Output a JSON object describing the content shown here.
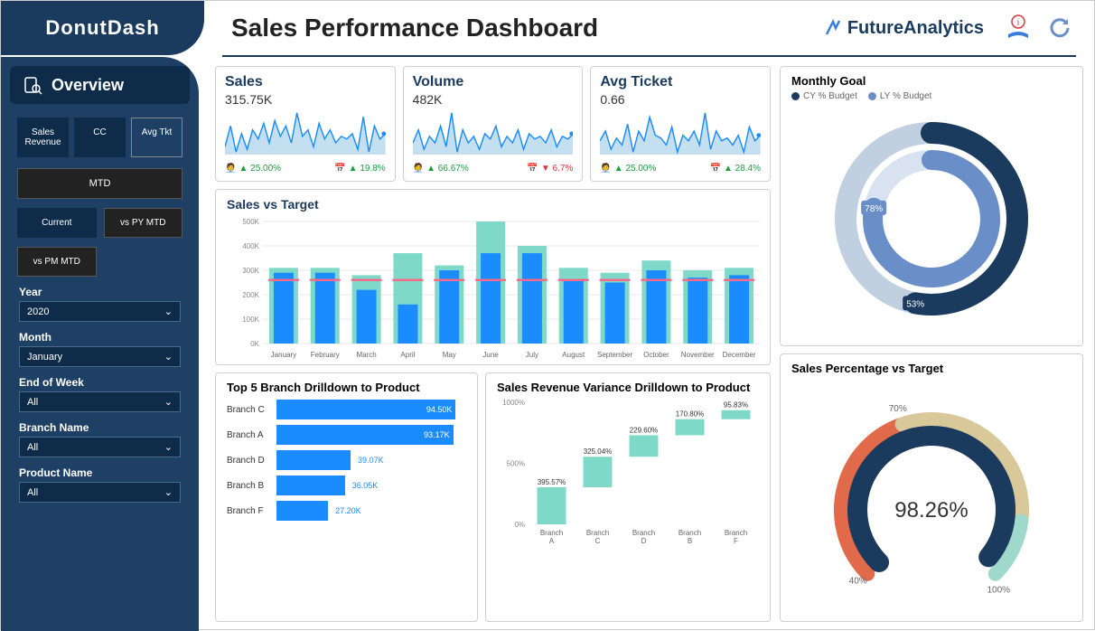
{
  "header": {
    "logo": "DonutDash",
    "title": "Sales Performance Dashboard",
    "brand": "FutureAnalytics"
  },
  "sidebar": {
    "overview": "Overview",
    "metrics": {
      "sales": "Sales Revenue",
      "cc": "CC",
      "avg": "Avg Tkt"
    },
    "mtd": "MTD",
    "periods": {
      "current": "Current",
      "vspy": "vs PY MTD",
      "vspm": "vs PM MTD"
    },
    "filters": {
      "year": {
        "label": "Year",
        "value": "2020"
      },
      "month": {
        "label": "Month",
        "value": "January"
      },
      "eow": {
        "label": "End of Week",
        "value": "All"
      },
      "branch": {
        "label": "Branch Name",
        "value": "All"
      },
      "product": {
        "label": "Product Name",
        "value": "All"
      }
    }
  },
  "kpis": {
    "sales": {
      "title": "Sales",
      "value": "315.75K",
      "stat1": "25.00%",
      "dir1": "up",
      "stat2": "19.8%",
      "dir2": "up",
      "spark": [
        22,
        38,
        18,
        32,
        20,
        35,
        28,
        40,
        25,
        42,
        30,
        38,
        25,
        48,
        30,
        35,
        22,
        40,
        28,
        35,
        25,
        30,
        28,
        32,
        20,
        45,
        18,
        38,
        28,
        32
      ],
      "area_color": "#c4e0f0",
      "line_color": "#1a8cff"
    },
    "volume": {
      "title": "Volume",
      "value": "482K",
      "stat1": "66.67%",
      "dir1": "up",
      "stat2": "6.7%",
      "dir2": "down",
      "spark": [
        25,
        35,
        20,
        30,
        25,
        38,
        22,
        48,
        18,
        35,
        25,
        30,
        20,
        32,
        28,
        38,
        22,
        30,
        25,
        35,
        20,
        32,
        28,
        30,
        25,
        35,
        22,
        30,
        28,
        32
      ],
      "area_color": "#c4e0f0",
      "line_color": "#1a8cff"
    },
    "ticket": {
      "title": "Avg Ticket",
      "value": "0.66",
      "stat1": "25.00%",
      "dir1": "up",
      "stat2": "28.4%",
      "dir2": "up",
      "spark": [
        28,
        35,
        22,
        30,
        25,
        40,
        20,
        35,
        28,
        45,
        32,
        30,
        25,
        38,
        20,
        32,
        28,
        35,
        25,
        48,
        22,
        35,
        28,
        30,
        25,
        32,
        20,
        38,
        28,
        32
      ],
      "area_color": "#c4e0f0",
      "line_color": "#1a8cff"
    }
  },
  "sales_target": {
    "title": "Sales vs Target",
    "months": [
      "January",
      "February",
      "March",
      "April",
      "May",
      "June",
      "July",
      "August",
      "September",
      "October",
      "November",
      "December"
    ],
    "y_ticks": [
      "0K",
      "100K",
      "200K",
      "300K",
      "400K",
      "500K"
    ],
    "front": [
      290,
      290,
      220,
      160,
      300,
      370,
      370,
      260,
      250,
      300,
      270,
      280
    ],
    "back": [
      310,
      310,
      280,
      370,
      320,
      500,
      400,
      310,
      290,
      340,
      300,
      310
    ],
    "target": [
      260,
      260,
      260,
      260,
      260,
      260,
      260,
      260,
      260,
      260,
      260,
      260
    ],
    "front_color": "#1a8cff",
    "back_color": "#7fd9c9",
    "target_color": "#ff6a88",
    "grid_color": "#e8e8e8"
  },
  "branches": {
    "title": "Top 5 Branch Drilldown to Product",
    "max": 100,
    "rows": [
      {
        "name": "Branch C",
        "value": 94.5,
        "label": "94.50K"
      },
      {
        "name": "Branch A",
        "value": 93.17,
        "label": "93.17K"
      },
      {
        "name": "Branch D",
        "value": 39.07,
        "label": "39.07K"
      },
      {
        "name": "Branch B",
        "value": 36.05,
        "label": "36.05K"
      },
      {
        "name": "Branch F",
        "value": 27.2,
        "label": "27.20K"
      }
    ],
    "bar_color": "#1a8cff"
  },
  "variance": {
    "title": "Sales Revenue Variance Drilldown to Product",
    "y_ticks": [
      "0%",
      "500%",
      "1000%"
    ],
    "bars": [
      {
        "name": "Branch A",
        "label": "395.57%",
        "start": 0,
        "end": 395
      },
      {
        "name": "Branch C",
        "label": "325.04%",
        "start": 395,
        "end": 720
      },
      {
        "name": "Branch D",
        "label": "229.60%",
        "start": 720,
        "end": 949
      },
      {
        "name": "Branch B",
        "label": "170.80%",
        "start": 949,
        "end": 1120
      },
      {
        "name": "Branch F",
        "label": "95.83%",
        "start": 1120,
        "end": 1216
      }
    ],
    "bar_color": "#7fd9c9",
    "ymax": 1300
  },
  "monthly_goal": {
    "title": "Monthly Goal",
    "legend": {
      "cy": "CY % Budget",
      "ly": "LY % Budget"
    },
    "outer_pct": 53,
    "outer_label": "53%",
    "outer_color": "#1a3a5e",
    "outer_bg": "#c0d0e0",
    "inner_pct": 78,
    "inner_label": "78%",
    "inner_color": "#6a8ec8",
    "inner_bg": "#d8e2f0"
  },
  "gauge": {
    "title": "Sales Percentage vs Target",
    "value": "98.26%",
    "ticks": {
      "t40": "40%",
      "t70": "70%",
      "t100": "100%"
    },
    "colors": {
      "red": "#e06a4a",
      "tan": "#d8c89a",
      "navy": "#1a3a5e",
      "teal": "#9fd9cc"
    }
  }
}
